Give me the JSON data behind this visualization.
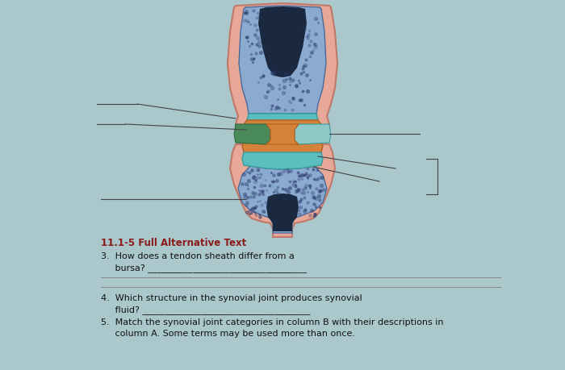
{
  "bg_color": "#aac8cc",
  "page_color": "#cfe0e3",
  "title_text": "11.1-5 Full Alternative Text",
  "title_color": "#8B1A1A",
  "title_fontsize": 8.5,
  "q3_line1": "3.  How does a tendon sheath differ from a",
  "q3_line2": "     bursa? ___________________________________",
  "q4_line1": "4.  Which structure in the synovial joint produces synovial",
  "q4_line2": "     fluid? _____________________________________",
  "q5_line1": "5.  Match the synovial joint categories in column B with their descriptions in",
  "q5_line2": "     column A. Some terms may be used more than once.",
  "body_fontsize": 8.0,
  "body_color": "#111111",
  "line_color": "#444444",
  "capsule_color": "#E8A898",
  "capsule_edge": "#C07868",
  "bone_color": "#8AAAD0",
  "bone_dark": "#4A6A9A",
  "marrow_color": "#1A2840",
  "cartilage_color": "#5BBFBF",
  "orange_color": "#D4823A",
  "green_color": "#4A8A5A",
  "synovial_color": "#90C8C8"
}
